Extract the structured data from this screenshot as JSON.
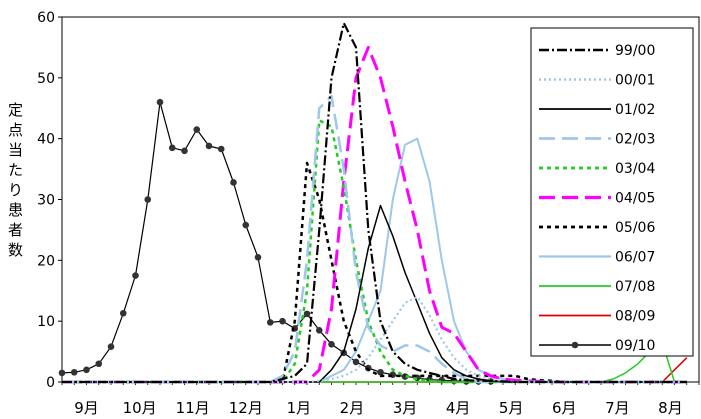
{
  "chart_data": {
    "type": "line",
    "title": "",
    "xlabel": "",
    "ylabel": "定点当たり患者数",
    "ylim": [
      0,
      60
    ],
    "yticks": [
      "0",
      "10",
      "20",
      "30",
      "40",
      "50",
      "60"
    ],
    "month_labels": [
      "9月",
      "10月",
      "11月",
      "12月",
      "1月",
      "2月",
      "3月",
      "4月",
      "5月",
      "6月",
      "7月",
      "8月"
    ],
    "weeks": 52,
    "grid": false,
    "legend_position": "top-right",
    "series": [
      {
        "name": "99/00",
        "color": "#000000",
        "dash": "10,3,2,3",
        "width": 2.2,
        "values": [
          0,
          0,
          0,
          0,
          0,
          0,
          0,
          0,
          0,
          0,
          0,
          0,
          0,
          0,
          0,
          0,
          0,
          0,
          0.5,
          1,
          3,
          25,
          50,
          59,
          55,
          25,
          10,
          5,
          3,
          2,
          1.5,
          1,
          0.5,
          0.3,
          0.2,
          0.2,
          0.1,
          0,
          0,
          0,
          0,
          0,
          0,
          0,
          0,
          0,
          0,
          0,
          0,
          0,
          0,
          0
        ]
      },
      {
        "name": "00/01",
        "color": "#9ec7ea",
        "dash": "2,3",
        "width": 2.2,
        "values": [
          0,
          0,
          0,
          0,
          0,
          0,
          0,
          0,
          0,
          0,
          0,
          0,
          0,
          0,
          0,
          0,
          0,
          0,
          0,
          0,
          0,
          0.2,
          0.5,
          1,
          2,
          4,
          7,
          10,
          13,
          14,
          11,
          7,
          4,
          2,
          1,
          0.5,
          0.2,
          0,
          0,
          0,
          0,
          0,
          0,
          0,
          0,
          0,
          0,
          0,
          0,
          0,
          0,
          0
        ]
      },
      {
        "name": "01/02",
        "color": "#000000",
        "dash": "",
        "width": 1.5,
        "values": [
          0,
          0,
          0,
          0,
          0,
          0,
          0,
          0,
          0,
          0,
          0,
          0,
          0,
          0,
          0,
          0,
          0,
          0,
          0,
          0,
          0,
          0,
          2,
          5,
          12,
          22,
          29,
          24,
          18,
          13,
          8,
          4,
          2,
          1,
          0.5,
          0.2,
          0,
          0,
          0,
          0,
          0,
          0,
          0,
          0,
          0,
          0,
          0,
          0,
          0,
          0,
          0,
          0
        ]
      },
      {
        "name": "02/03",
        "color": "#9ec7ea",
        "dash": "16,7",
        "width": 2.5,
        "values": [
          0,
          0,
          0,
          0,
          0,
          0,
          0,
          0,
          0,
          0,
          0,
          0,
          0,
          0,
          0,
          0,
          0,
          0,
          1,
          5,
          20,
          45,
          47,
          35,
          18,
          9,
          6,
          5,
          6,
          6,
          5,
          3,
          1.5,
          0.5,
          0,
          0,
          0,
          0,
          0,
          0,
          0,
          0,
          0,
          0,
          0,
          0,
          0,
          0,
          0,
          0,
          0,
          0
        ]
      },
      {
        "name": "03/04",
        "color": "#22cc22",
        "dash": "4,4",
        "width": 2.5,
        "values": [
          0,
          0,
          0,
          0,
          0,
          0,
          0,
          0,
          0,
          0,
          0,
          0,
          0,
          0,
          0,
          0,
          0,
          0,
          0,
          3,
          15,
          43,
          42,
          32,
          20,
          10,
          5,
          2,
          1,
          0.5,
          0.2,
          0,
          0,
          0,
          0,
          0,
          0,
          0,
          0,
          0,
          0,
          0,
          0,
          0,
          0,
          0,
          0,
          0,
          0,
          0,
          0,
          0
        ]
      },
      {
        "name": "04/05",
        "color": "#ff00ff",
        "dash": "16,7",
        "width": 3,
        "values": [
          0,
          0,
          0,
          0,
          0,
          0,
          0,
          0,
          0,
          0,
          0,
          0,
          0,
          0,
          0,
          0,
          0,
          0,
          0,
          0,
          0,
          2,
          12,
          33,
          50,
          55,
          50,
          42,
          33,
          25,
          15,
          9,
          8,
          5,
          2,
          1,
          0.5,
          0.3,
          0.2,
          0.1,
          0,
          0,
          0,
          0,
          0,
          0,
          0,
          0,
          0,
          0,
          0,
          0
        ]
      },
      {
        "name": "05/06",
        "color": "#000000",
        "dash": "4,4",
        "width": 2.5,
        "values": [
          0,
          0,
          0,
          0,
          0,
          0,
          0,
          0,
          0,
          0,
          0,
          0,
          0,
          0,
          0,
          0,
          0,
          0,
          0,
          10,
          36,
          30,
          20,
          10,
          5,
          2,
          1,
          1,
          1,
          1,
          1,
          1,
          1,
          1,
          1,
          1,
          1,
          1,
          0.5,
          0.3,
          0.2,
          0,
          0,
          0,
          0,
          0,
          0,
          0,
          0,
          0,
          0,
          0
        ]
      },
      {
        "name": "06/07",
        "color": "#9ec7ea",
        "dash": "",
        "width": 2,
        "values": [
          0,
          0,
          0,
          0,
          0,
          0,
          0,
          0,
          0,
          0,
          0,
          0,
          0,
          0,
          0,
          0,
          0,
          0,
          0,
          0,
          0,
          0,
          1,
          2,
          5,
          10,
          15,
          30,
          39,
          40,
          33,
          20,
          10,
          5,
          2,
          1,
          0.5,
          0.2,
          0,
          0,
          0,
          0,
          0,
          0,
          0,
          0,
          0,
          0,
          0,
          0,
          0,
          0
        ]
      },
      {
        "name": "07/08",
        "color": "#22cc22",
        "dash": "",
        "width": 1.5,
        "values": [
          0,
          0,
          0,
          0,
          0,
          0,
          0,
          0,
          0,
          0,
          0,
          0,
          0,
          0,
          0,
          0,
          0,
          0,
          0,
          0,
          0,
          0,
          0,
          0,
          0,
          0,
          0,
          0,
          0,
          0,
          0,
          0,
          0,
          0,
          0,
          0,
          0,
          0,
          0,
          0,
          0,
          0,
          0,
          0,
          0,
          0.5,
          1.5,
          3,
          5,
          6.5,
          0,
          0
        ]
      },
      {
        "name": "08/09",
        "color": "#dd0000",
        "dash": "",
        "width": 1.5,
        "values": [
          0,
          0,
          0,
          0,
          0,
          0,
          0,
          0,
          0,
          0,
          0,
          0,
          0,
          0,
          0,
          0,
          0,
          0,
          0,
          0,
          0,
          0,
          0,
          0,
          0,
          0,
          0,
          0,
          0,
          0,
          0,
          0,
          0,
          0,
          0,
          0,
          0,
          0,
          0,
          0,
          0,
          0,
          0,
          0,
          0,
          0,
          0,
          0,
          0,
          0,
          2,
          4
        ]
      },
      {
        "name": "09/10",
        "color": "#000000",
        "dash": "",
        "width": 1.2,
        "marker": true,
        "values": [
          1.5,
          1.6,
          2,
          3,
          5.8,
          11.3,
          17.5,
          30,
          46,
          38.5,
          38,
          41.5,
          38.8,
          38.3,
          32.8,
          25.8,
          20.5,
          9.8,
          10,
          8.8,
          11.2,
          8.5,
          6.2,
          4.8,
          3.3,
          2.3,
          1.6,
          1.2,
          0.9,
          0.7,
          0.4,
          0.3,
          0.2,
          0.1,
          0.1,
          0.1,
          0,
          0,
          0,
          0,
          0,
          0,
          0,
          0,
          0,
          0,
          0,
          0,
          0,
          0,
          0,
          0
        ]
      }
    ]
  }
}
